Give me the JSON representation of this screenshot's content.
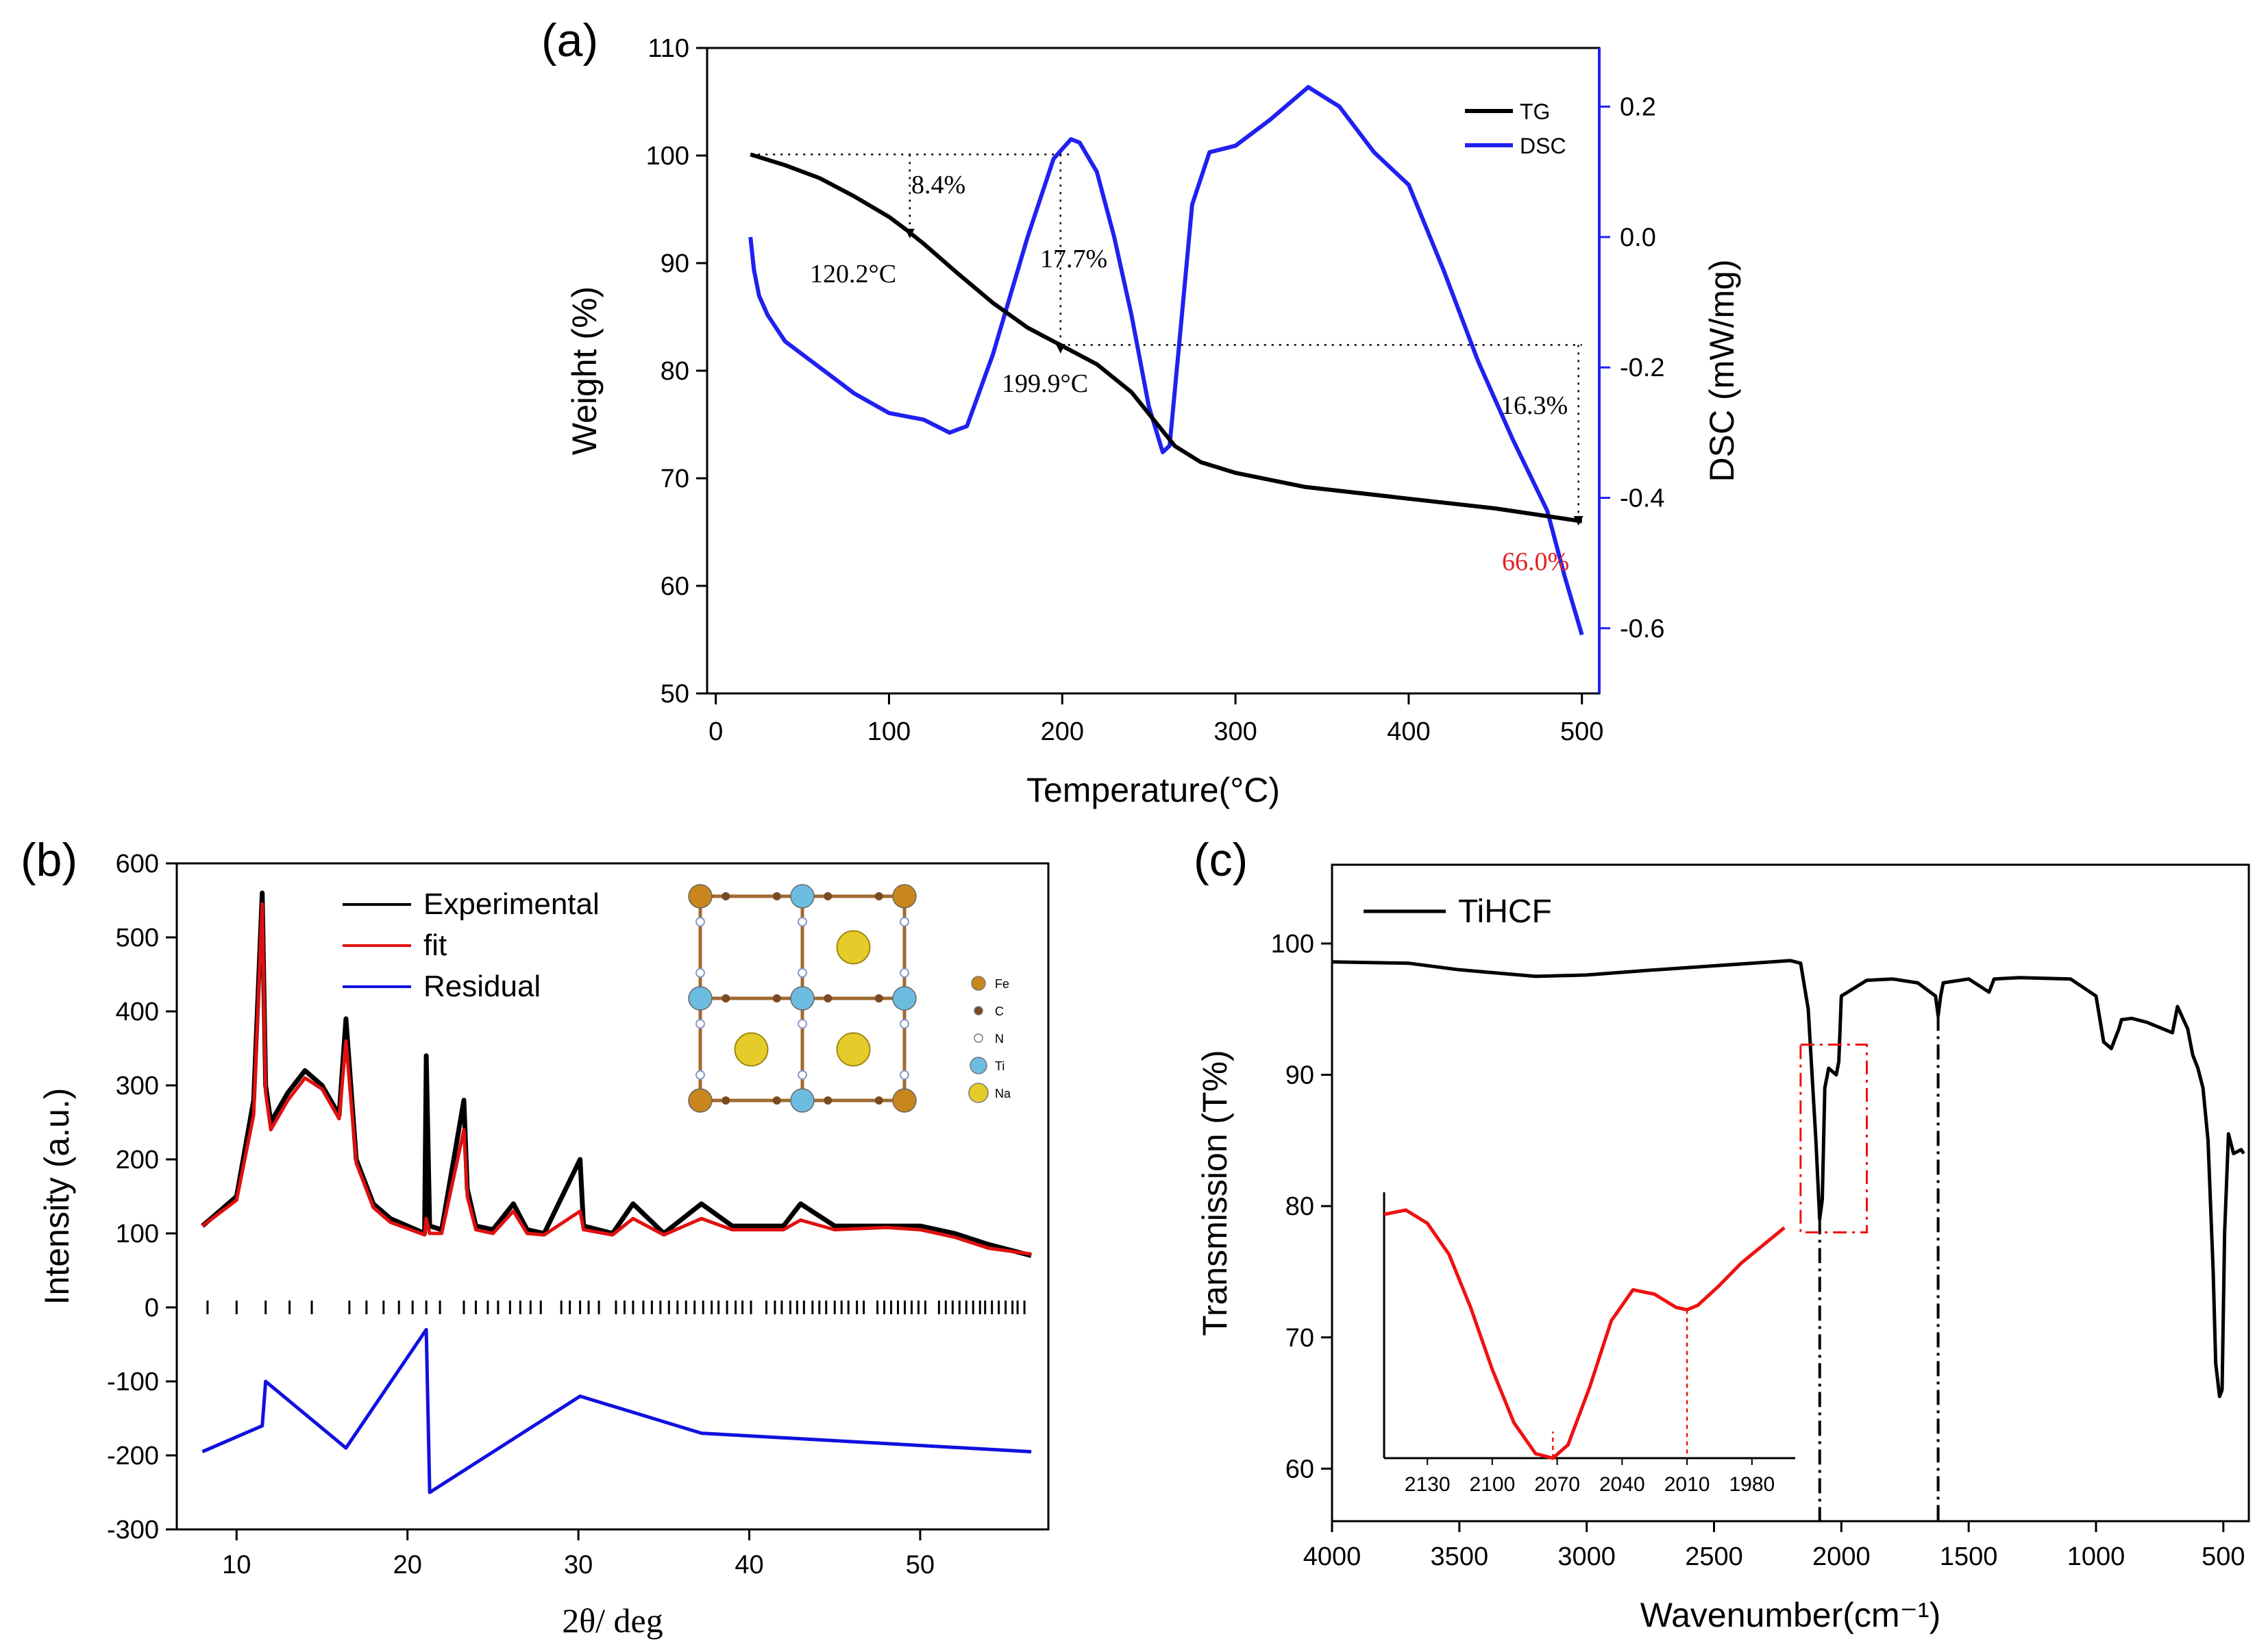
{
  "panel_a": {
    "label": "(a)",
    "chart_data": {
      "type": "line",
      "xlabel": "Temperature(°C)",
      "ylabel_left": "Weight (%)",
      "ylabel_right": "DSC (mW/mg)",
      "xlim": [
        -5,
        510
      ],
      "ylim_left": [
        50,
        110
      ],
      "ylim_right": [
        -0.7,
        0.29
      ],
      "x_ticks": [
        0,
        100,
        200,
        300,
        400,
        500
      ],
      "y_ticks_left": [
        50,
        60,
        70,
        80,
        90,
        100,
        110
      ],
      "y_ticks_right": [
        -0.6,
        -0.4,
        -0.2,
        0.0,
        0.2
      ],
      "legend_position": "top-right",
      "series": [
        {
          "name": "TG",
          "axis": "left",
          "color": "#000000",
          "x": [
            20,
            40,
            60,
            80,
            100,
            110,
            120,
            140,
            160,
            180,
            200,
            220,
            240,
            255,
            265,
            280,
            300,
            340,
            400,
            450,
            500
          ],
          "y": [
            100.1,
            99.1,
            97.9,
            96.2,
            94.3,
            93.1,
            91.8,
            89.0,
            86.3,
            84.0,
            82.3,
            80.6,
            78.0,
            75.0,
            73.0,
            71.5,
            70.5,
            69.2,
            68.1,
            67.2,
            66.0
          ]
        },
        {
          "name": "DSC",
          "axis": "right",
          "color": "#2020f0",
          "x": [
            20,
            22,
            25,
            30,
            40,
            60,
            80,
            100,
            120,
            135,
            145,
            160,
            180,
            195,
            205,
            210,
            220,
            230,
            240,
            250,
            258,
            262,
            268,
            275,
            285,
            300,
            320,
            342,
            360,
            380,
            400,
            420,
            440,
            460,
            480,
            490,
            500
          ],
          "y": [
            0.0,
            -0.05,
            -0.09,
            -0.12,
            -0.16,
            -0.2,
            -0.24,
            -0.27,
            -0.28,
            -0.3,
            -0.29,
            -0.18,
            0.0,
            0.12,
            0.15,
            0.145,
            0.1,
            0.0,
            -0.12,
            -0.26,
            -0.33,
            -0.32,
            -0.15,
            0.05,
            0.13,
            0.14,
            0.18,
            0.23,
            0.2,
            0.13,
            0.08,
            -0.05,
            -0.19,
            -0.31,
            -0.42,
            -0.52,
            -0.61
          ]
        }
      ],
      "annotations": [
        {
          "text": "8.4%",
          "color": "#000000"
        },
        {
          "text": "120.2°C",
          "color": "#000000"
        },
        {
          "text": "17.7%",
          "color": "#000000"
        },
        {
          "text": "199.9°C",
          "color": "#000000"
        },
        {
          "text": "16.3%",
          "color": "#000000"
        },
        {
          "text": "66.0%",
          "color": "#e02020"
        }
      ]
    }
  },
  "panel_b": {
    "label": "(b)",
    "chart_data": {
      "type": "line",
      "xlabel": "2θ/ deg",
      "ylabel": "Intensity (a.u.)",
      "xlim": [
        6.5,
        57.5
      ],
      "ylim": [
        -300,
        600
      ],
      "x_ticks": [
        10,
        20,
        30,
        40,
        50
      ],
      "y_ticks": [
        -300,
        -200,
        -100,
        0,
        100,
        200,
        300,
        400,
        500,
        600
      ],
      "legend_position": "top-center",
      "series": [
        {
          "name": "Experimental",
          "color": "#000000",
          "x": [
            8,
            10,
            11,
            11.5,
            11.7,
            12,
            13,
            14,
            15,
            16,
            16.4,
            17,
            18,
            19,
            21,
            21.1,
            21.3,
            22,
            23.3,
            23.5,
            24,
            25,
            26.2,
            27,
            28,
            30.1,
            30.3,
            32,
            33.2,
            35,
            37.2,
            39,
            42,
            43,
            45,
            48,
            50,
            52,
            54,
            56.5
          ],
          "y": [
            110,
            150,
            280,
            560,
            300,
            250,
            290,
            320,
            300,
            260,
            390,
            200,
            140,
            120,
            100,
            340,
            110,
            105,
            280,
            160,
            110,
            105,
            140,
            105,
            100,
            200,
            110,
            100,
            140,
            100,
            140,
            110,
            110,
            140,
            110,
            110,
            110,
            100,
            85,
            70
          ]
        },
        {
          "name": "fit",
          "color": "#e01010",
          "x": [
            8,
            10,
            11,
            11.5,
            11.7,
            12,
            13,
            14,
            15,
            16,
            16.4,
            17,
            18,
            19,
            21,
            21.1,
            21.3,
            22,
            23.3,
            23.5,
            24,
            25,
            26.2,
            27,
            28,
            30.1,
            30.3,
            32,
            33.2,
            35,
            37.2,
            39,
            42,
            43,
            45,
            48,
            50,
            52,
            54,
            56.5
          ],
          "y": [
            110,
            145,
            260,
            545,
            290,
            240,
            280,
            310,
            295,
            255,
            360,
            195,
            135,
            115,
            98,
            120,
            100,
            100,
            240,
            150,
            105,
            100,
            130,
            100,
            98,
            130,
            105,
            98,
            120,
            98,
            120,
            105,
            105,
            118,
            105,
            108,
            105,
            95,
            80,
            72
          ]
        },
        {
          "name": "Residual",
          "color": "#1010e0",
          "x": [
            8,
            11.5,
            11.7,
            16.4,
            21.1,
            21.3,
            30.1,
            37.2,
            56.5
          ],
          "y": [
            -195,
            -160,
            -100,
            -190,
            -30,
            -250,
            -120,
            -170,
            -195
          ]
        }
      ],
      "reflection_ticks_2theta": [
        8.3,
        10.0,
        11.7,
        13.1,
        14.4,
        16.6,
        17.6,
        18.6,
        19.5,
        20.3,
        21.1,
        21.9,
        23.3,
        24.0,
        24.7,
        25.3,
        26.0,
        26.6,
        27.2,
        27.8,
        29.0,
        29.5,
        30.1,
        30.6,
        31.2,
        32.2,
        32.7,
        33.2,
        33.8,
        34.3,
        34.8,
        35.3,
        35.8,
        36.3,
        36.8,
        37.3,
        37.8,
        38.2,
        38.7,
        39.2,
        39.6,
        40.1,
        41.0,
        41.5,
        41.9,
        42.4,
        42.8,
        43.2,
        43.7,
        44.1,
        44.5,
        45.0,
        45.4,
        45.8,
        46.3,
        46.7,
        47.5,
        47.9,
        48.3,
        48.7,
        49.1,
        49.5,
        49.9,
        50.3,
        51.1,
        51.5,
        51.9,
        52.3,
        52.7,
        53.1,
        53.5,
        53.8,
        54.2,
        54.6,
        55.0,
        55.4,
        55.7,
        56.1
      ],
      "inset_structure_legend": [
        "Fe",
        "C",
        "N",
        "Ti",
        "Na"
      ]
    }
  },
  "panel_c": {
    "label": "(c)",
    "chart_data": {
      "type": "line",
      "xlabel": "Wavenumber(cm⁻¹)",
      "ylabel": "Transmission (T%)",
      "xlim": [
        4000,
        400
      ],
      "ylim": [
        56,
        106
      ],
      "x_ticks": [
        4000,
        3500,
        3000,
        2500,
        2000,
        1500,
        1000,
        500
      ],
      "y_ticks": [
        60,
        70,
        80,
        90,
        100
      ],
      "legend_position": "top-left",
      "series": [
        {
          "name": "TiHCF",
          "color": "#000000",
          "x": [
            4000,
            3700,
            3500,
            3200,
            3000,
            2800,
            2500,
            2200,
            2160,
            2130,
            2100,
            2085,
            2075,
            2065,
            2050,
            2020,
            2010,
            2000,
            1900,
            1800,
            1700,
            1630,
            1620,
            1610,
            1600,
            1500,
            1420,
            1400,
            1300,
            1100,
            1000,
            970,
            940,
            910,
            900,
            860,
            800,
            700,
            680,
            640,
            620,
            600,
            580,
            560,
            540,
            530,
            515,
            505,
            495,
            480,
            460,
            430,
            420
          ],
          "y": [
            98.6,
            98.5,
            98.0,
            97.5,
            97.6,
            97.9,
            98.3,
            98.7,
            98.5,
            95.0,
            85.0,
            79.0,
            80.5,
            89.0,
            90.5,
            90.0,
            91.0,
            96.0,
            97.2,
            97.3,
            97.0,
            96.0,
            94.5,
            96.0,
            97.0,
            97.3,
            96.3,
            97.3,
            97.4,
            97.3,
            96.0,
            92.5,
            92.0,
            93.5,
            94.2,
            94.3,
            94.0,
            93.2,
            95.2,
            93.5,
            91.5,
            90.5,
            89.0,
            85.0,
            75.0,
            68.0,
            65.5,
            66.0,
            78.0,
            85.5,
            84.0,
            84.3,
            84.0
          ]
        }
      ],
      "inset": {
        "color": "#ee1111",
        "x_ticks": [
          2130,
          2100,
          2070,
          2040,
          2010,
          1980
        ],
        "xlim": [
          2150,
          1960
        ],
        "x": [
          2150,
          2140,
          2130,
          2120,
          2110,
          2100,
          2090,
          2080,
          2072,
          2065,
          2055,
          2045,
          2035,
          2025,
          2015,
          2010,
          2005,
          1995,
          1985,
          1975,
          1965
        ],
        "y": [
          0.55,
          0.56,
          0.53,
          0.46,
          0.34,
          0.2,
          0.08,
          0.01,
          0.0,
          0.03,
          0.16,
          0.31,
          0.38,
          0.37,
          0.34,
          0.335,
          0.345,
          0.39,
          0.44,
          0.48,
          0.52
        ]
      }
    }
  }
}
